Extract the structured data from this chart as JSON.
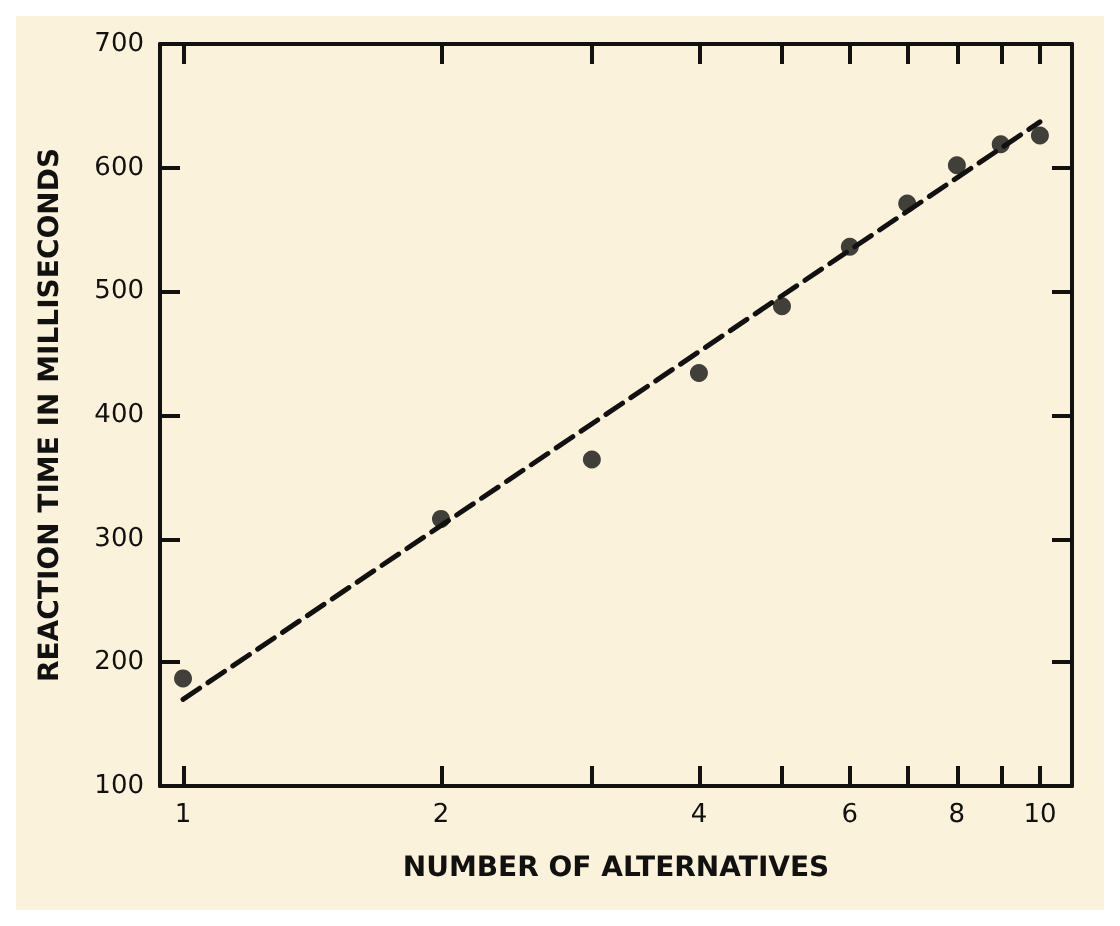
{
  "chart_data": {
    "type": "scatter",
    "xlabel": "NUMBER OF ALTERNATIVES",
    "ylabel": "REACTION TIME IN MILLISECONDS",
    "log": "x",
    "xlim": [
      0.94,
      10.9
    ],
    "ylim": [
      100,
      700
    ],
    "xticks": [
      1,
      2,
      {
        "value": 3,
        "label": null
      },
      4,
      {
        "value": 5,
        "label": null
      },
      6,
      {
        "value": 7,
        "label": null
      },
      8,
      {
        "value": 9,
        "label": null
      },
      10
    ],
    "yticks": [
      100,
      200,
      300,
      400,
      500,
      600,
      700
    ],
    "grid": false,
    "marker": "circle",
    "series": [
      {
        "color": "#111111",
        "x": [
          1,
          2,
          3,
          4,
          5,
          6,
          7,
          8,
          9,
          10
        ],
        "values": [
          187,
          316,
          364,
          434,
          488,
          536,
          571,
          602,
          619,
          626
        ]
      },
      {
        "type": "line",
        "color": "#111111",
        "line_style": "dashed",
        "marker": "none",
        "x": [
          1,
          10
        ],
        "values": [
          170,
          637
        ]
      }
    ]
  }
}
